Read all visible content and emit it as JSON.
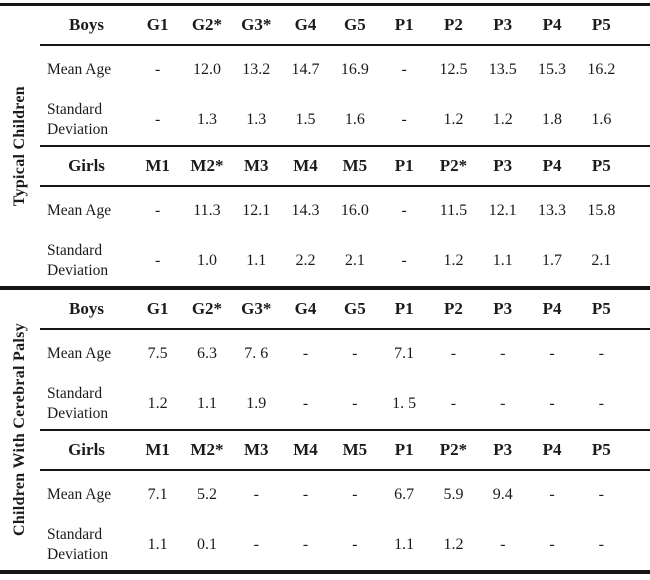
{
  "colors": {
    "text": "#1b1b1b",
    "rules": "#161616",
    "background": "#ffffff"
  },
  "table": {
    "sections": [
      {
        "side_label": "Typical Children",
        "blocks": [
          {
            "header": [
              "Boys",
              "G1",
              "G2*",
              "G3*",
              "G4",
              "G5",
              "P1",
              "P2",
              "P3",
              "P4",
              "P5"
            ],
            "rows": [
              {
                "label_lines": [
                  "Mean Age"
                ],
                "values": [
                  "-",
                  "12.0",
                  "13.2",
                  "14.7",
                  "16.9",
                  "-",
                  "12.5",
                  "13.5",
                  "15.3",
                  "16.2"
                ]
              },
              {
                "label_lines": [
                  "Standard",
                  "Deviation"
                ],
                "values": [
                  "-",
                  "1.3",
                  "1.3",
                  "1.5",
                  "1.6",
                  "-",
                  "1.2",
                  "1.2",
                  "1.8",
                  "1.6"
                ]
              }
            ]
          },
          {
            "header": [
              "Girls",
              "M1",
              "M2*",
              "M3",
              "M4",
              "M5",
              "P1",
              "P2*",
              "P3",
              "P4",
              "P5"
            ],
            "rows": [
              {
                "label_lines": [
                  "Mean Age"
                ],
                "values": [
                  "-",
                  "11.3",
                  "12.1",
                  "14.3",
                  "16.0",
                  "-",
                  "11.5",
                  "12.1",
                  "13.3",
                  "15.8"
                ]
              },
              {
                "label_lines": [
                  "Standard",
                  "Deviation"
                ],
                "values": [
                  "-",
                  "1.0",
                  "1.1",
                  "2.2",
                  "2.1",
                  "-",
                  "1.2",
                  "1.1",
                  "1.7",
                  "2.1"
                ]
              }
            ]
          }
        ]
      },
      {
        "side_label": "Children With Cerebral Palsy",
        "blocks": [
          {
            "header": [
              "Boys",
              "G1",
              "G2*",
              "G3*",
              "G4",
              "G5",
              "P1",
              "P2",
              "P3",
              "P4",
              "P5"
            ],
            "rows": [
              {
                "label_lines": [
                  "Mean Age"
                ],
                "values": [
                  "7.5",
                  "6.3",
                  "7. 6",
                  "-",
                  "-",
                  "7.1",
                  "-",
                  "-",
                  "-",
                  "-"
                ]
              },
              {
                "label_lines": [
                  "Standard",
                  "Deviation"
                ],
                "values": [
                  "1.2",
                  "1.1",
                  "1.9",
                  "-",
                  "-",
                  "1. 5",
                  "-",
                  "-",
                  "-",
                  "-"
                ]
              }
            ]
          },
          {
            "header": [
              "Girls",
              "M1",
              "M2*",
              "M3",
              "M4",
              "M5",
              "P1",
              "P2*",
              "P3",
              "P4",
              "P5"
            ],
            "rows": [
              {
                "label_lines": [
                  "Mean Age"
                ],
                "values": [
                  "7.1",
                  "5.2",
                  "-",
                  "-",
                  "-",
                  "6.7",
                  "5.9",
                  "9.4",
                  "-",
                  "-"
                ]
              },
              {
                "label_lines": [
                  "Standard",
                  "Deviation"
                ],
                "values": [
                  "1.1",
                  "0.1",
                  "-",
                  "-",
                  "-",
                  "1.1",
                  "1.2",
                  "-",
                  "-",
                  "-"
                ]
              }
            ]
          }
        ]
      }
    ]
  }
}
